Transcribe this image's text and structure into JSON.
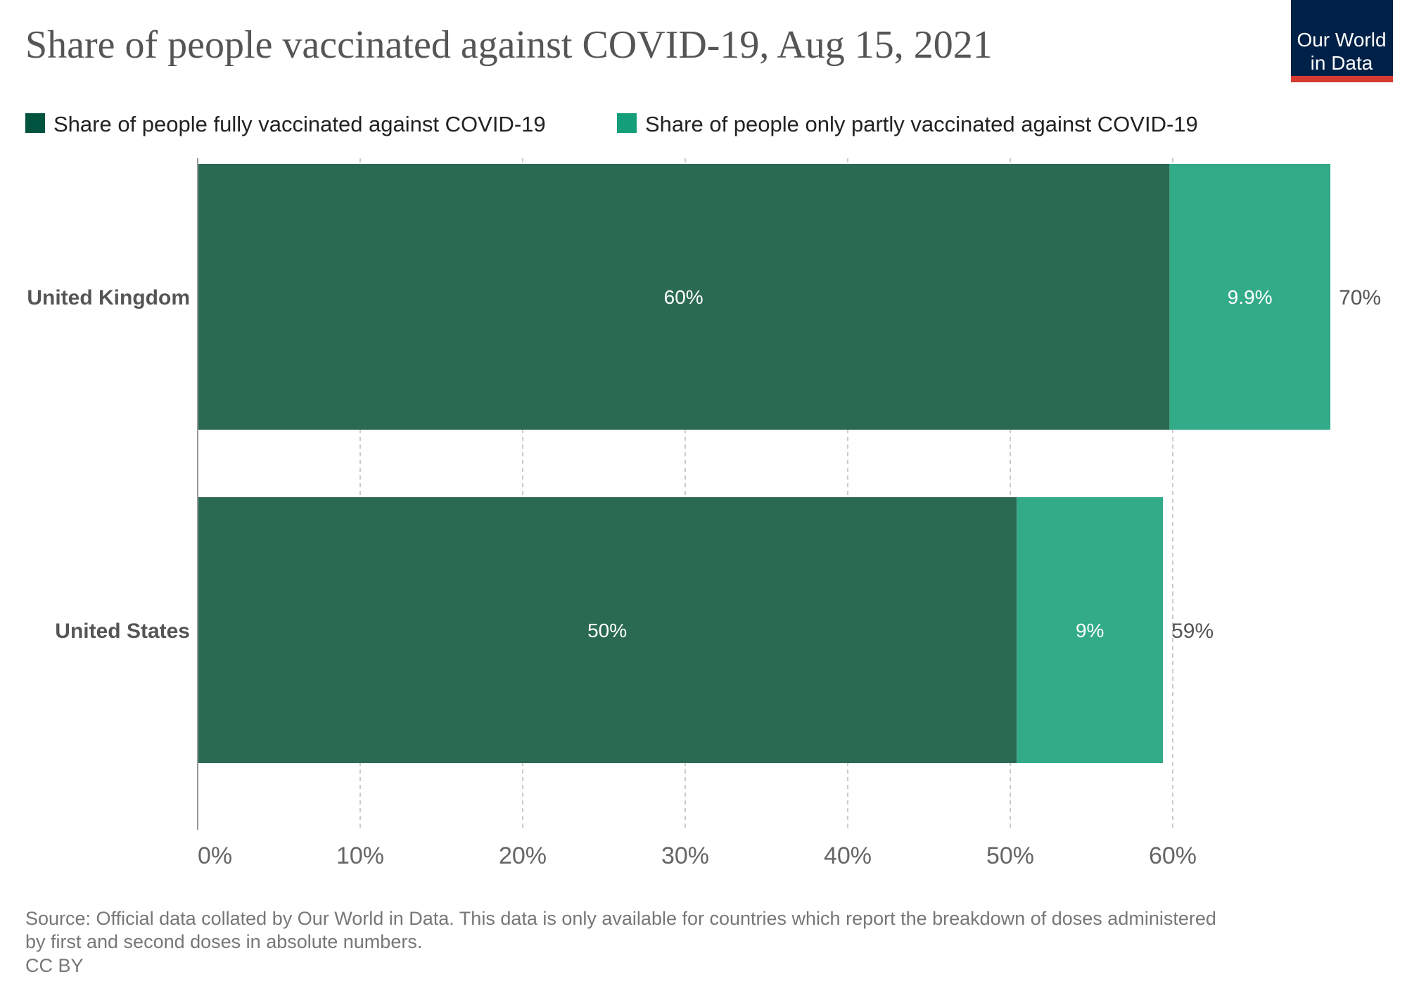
{
  "chart_data": {
    "type": "bar",
    "orientation": "horizontal",
    "stacked": true,
    "title": "Share of people vaccinated against COVID-19, Aug 15, 2021",
    "categories": [
      "United Kingdom",
      "United States"
    ],
    "series": [
      {
        "name": "Share of people fully vaccinated against COVID-19",
        "values": [
          59.8,
          50.4
        ],
        "labels": [
          "60%",
          "50%"
        ],
        "color": "#2b6a52"
      },
      {
        "name": "Share of people only partly vaccinated against COVID-19",
        "values": [
          9.9,
          9.0
        ],
        "labels": [
          "9.9%",
          "9%"
        ],
        "color": "#33ab88"
      }
    ],
    "totals": [
      "70%",
      "59%"
    ],
    "xlim": [
      0,
      70
    ],
    "xticks": [
      0,
      10,
      20,
      30,
      40,
      50,
      60
    ],
    "xtick_labels": [
      "0%",
      "10%",
      "20%",
      "30%",
      "40%",
      "50%",
      "60%"
    ],
    "grid": true,
    "legend_position": "top-left",
    "legend_colors": [
      "#00543f",
      "#149e7a"
    ]
  },
  "source_line1": "Source: Official data collated by Our World in Data. This data is only available for countries which report the breakdown of doses administered",
  "source_line2": "by first and second doses in absolute numbers.",
  "license": "CC BY",
  "logo": {
    "line1": "Our World",
    "line2": "in Data",
    "bg": "#002147",
    "accent": "#d73a31"
  }
}
